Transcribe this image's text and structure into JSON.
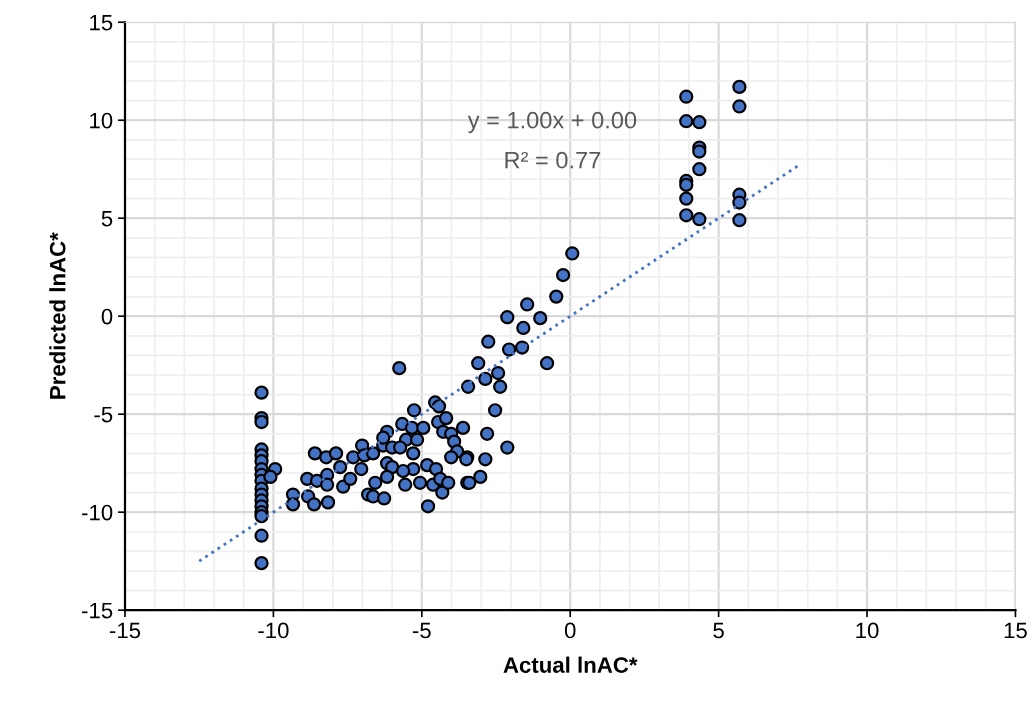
{
  "chart_data": {
    "type": "scatter",
    "xlabel": "Actual lnAC*",
    "ylabel": "Predicted lnAC*",
    "xlim": [
      -15,
      15
    ],
    "xticks": [
      -15,
      -10,
      -5,
      0,
      5,
      10,
      15
    ],
    "ylim": [
      -15,
      15
    ],
    "yticks": [
      -15,
      -10,
      -5,
      0,
      5,
      10,
      15
    ],
    "grid": true,
    "marker": "circle",
    "legend": false,
    "annotations": [
      "y = 1.00x + 0.00",
      "R² = 0.77"
    ],
    "series": [
      {
        "color": "#4472c4",
        "x": [
          -10.4,
          -10.4,
          -10.4,
          -10.4,
          -10.4,
          -10.4,
          -10.4,
          -10.4,
          -10.4,
          -10.4,
          -10.4,
          -10.4,
          -10.4,
          -10.4,
          -10.4,
          -10.4,
          -10.4,
          -9.94,
          -10.1,
          -5.76,
          -3.44,
          -9.34,
          -9.34,
          -8.83,
          -8.63,
          -8.16,
          -8.6,
          -8.22,
          -7.89,
          -7.75,
          -8.86,
          -8.53,
          -8.19,
          -8.19,
          -7.65,
          -7.41,
          -7.31,
          -7.01,
          -6.94,
          -7.04,
          -6.64,
          -6.57,
          -6.81,
          -6.64,
          -6.27,
          -6.3,
          -6.17,
          -6.3,
          -6.0,
          -6.17,
          -6.0,
          -6.17,
          -5.66,
          -5.33,
          -5.26,
          -5.53,
          -5.16,
          -5.73,
          -5.29,
          -5.29,
          -5.63,
          -5.56,
          -5.06,
          -4.95,
          -4.82,
          -4.52,
          -4.62,
          -4.31,
          -4.79,
          -4.55,
          -4.42,
          -4.45,
          -4.18,
          -4.28,
          -4.01,
          -3.91,
          -3.81,
          -4.01,
          -4.38,
          -4.11,
          -3.61,
          -3.47,
          -3.47,
          0.07,
          -0.24,
          -0.47,
          -1.45,
          -1.01,
          -2.12,
          -1.58,
          -2.76,
          -2.06,
          -1.62,
          -0.78,
          -3.1,
          -2.43,
          -2.86,
          -2.36,
          -2.53,
          -2.8,
          -2.12,
          -2.86,
          -3.03,
          -3.4,
          -3.5,
          3.91,
          3.91,
          4.35,
          4.35,
          4.35,
          4.35,
          3.91,
          3.91,
          3.91,
          3.91,
          4.35,
          5.7,
          5.7,
          5.7,
          5.7,
          5.7
        ],
        "values": [
          -3.9,
          -5.2,
          -5.4,
          -6.8,
          -7.1,
          -7.4,
          -7.8,
          -8.1,
          -8.4,
          -8.8,
          -9.1,
          -9.4,
          -9.7,
          -10.0,
          -10.2,
          -11.2,
          -12.6,
          -7.8,
          -8.2,
          -2.65,
          -3.6,
          -9.1,
          -9.6,
          -9.2,
          -9.6,
          -9.5,
          -7.0,
          -7.2,
          -7.0,
          -7.7,
          -8.3,
          -8.4,
          -8.1,
          -8.6,
          -8.7,
          -8.3,
          -7.2,
          -6.6,
          -7.1,
          -7.8,
          -7.0,
          -8.5,
          -9.1,
          -9.2,
          -9.3,
          -6.6,
          -5.9,
          -6.2,
          -6.7,
          -7.5,
          -7.7,
          -8.2,
          -5.5,
          -5.7,
          -4.8,
          -6.3,
          -6.3,
          -6.7,
          -7.0,
          -7.8,
          -7.9,
          -8.6,
          -8.5,
          -5.7,
          -7.6,
          -7.8,
          -8.6,
          -9.0,
          -9.7,
          -4.4,
          -4.6,
          -5.4,
          -5.2,
          -5.9,
          -6.0,
          -6.4,
          -6.9,
          -7.2,
          -8.3,
          -8.5,
          -5.7,
          -7.2,
          -8.5,
          3.2,
          2.1,
          1.0,
          0.6,
          -0.1,
          -0.05,
          -0.6,
          -1.3,
          -1.7,
          -1.6,
          -2.4,
          -2.4,
          -2.9,
          -3.2,
          -3.6,
          -4.8,
          -6.0,
          -6.7,
          -7.3,
          -8.2,
          -8.5,
          -7.3,
          11.2,
          9.95,
          9.9,
          8.6,
          8.4,
          7.5,
          6.9,
          6.7,
          6.0,
          5.15,
          4.95,
          11.7,
          10.7,
          6.2,
          5.8,
          4.9
        ]
      },
      {
        "type": "line",
        "color": "#4472c4",
        "line_style": "dotted",
        "marker": "none",
        "x": [
          -12.5,
          7.7
        ],
        "values": [
          -12.5,
          7.7
        ]
      }
    ]
  }
}
